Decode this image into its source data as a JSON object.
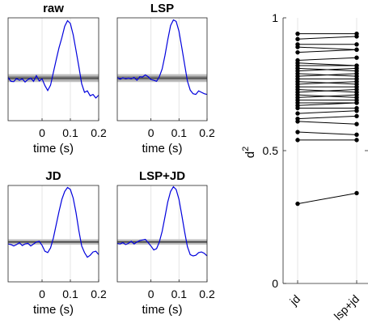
{
  "chart_data": [
    {
      "type": "line",
      "title": "raw",
      "xlabel": "time (s)",
      "xticks": [
        "0",
        "0.1",
        "0.2"
      ],
      "xlim": [
        -0.12,
        0.2
      ],
      "band": {
        "outer": 0.55,
        "inner": 0.28
      },
      "series": [
        {
          "x": [
            -0.12,
            -0.11,
            -0.1,
            -0.09,
            -0.08,
            -0.07,
            -0.06,
            -0.05,
            -0.04,
            -0.03,
            -0.02,
            -0.01,
            0,
            0.01,
            0.02,
            0.03,
            0.04,
            0.05,
            0.06,
            0.07,
            0.08,
            0.09,
            0.1,
            0.11,
            0.12,
            0.13,
            0.14,
            0.15,
            0.16,
            0.17,
            0.18,
            0.19,
            0.2
          ],
          "y": [
            0.1,
            -0.45,
            -0.5,
            -0.05,
            -0.3,
            -0.1,
            -0.55,
            -0.2,
            0.0,
            -0.45,
            0.35,
            -0.4,
            -0.1,
            -1.05,
            -1.75,
            -1.0,
            0.8,
            2.6,
            4.3,
            5.7,
            7.3,
            8.1,
            7.7,
            6.1,
            3.9,
            1.6,
            -0.8,
            -2.0,
            -1.8,
            -2.5,
            -2.3,
            -2.8,
            -2.4
          ]
        }
      ],
      "ylim": [
        -6,
        8.5
      ],
      "color": "#0000dd"
    },
    {
      "type": "line",
      "title": "LSP",
      "xlabel": "time (s)",
      "xticks": [
        "0",
        "0.1",
        "0.2"
      ],
      "xlim": [
        -0.12,
        0.2
      ],
      "band": {
        "outer": 0.55,
        "inner": 0.28
      },
      "series": [
        {
          "x": [
            -0.12,
            -0.11,
            -0.1,
            -0.09,
            -0.08,
            -0.07,
            -0.06,
            -0.05,
            -0.04,
            -0.03,
            -0.02,
            -0.01,
            0,
            0.01,
            0.02,
            0.03,
            0.04,
            0.05,
            0.06,
            0.07,
            0.08,
            0.09,
            0.1,
            0.11,
            0.12,
            0.13,
            0.14,
            0.15,
            0.16,
            0.17,
            0.18,
            0.19,
            0.2
          ],
          "y": [
            0.1,
            -0.15,
            0.05,
            -0.1,
            0.0,
            -0.1,
            0.1,
            -0.3,
            0.2,
            0.15,
            0.45,
            0.2,
            -0.2,
            -0.3,
            -0.45,
            0.2,
            1.3,
            3.2,
            5.4,
            7.4,
            8.2,
            8.0,
            6.6,
            4.3,
            1.9,
            -0.4,
            -1.7,
            -2.2,
            -2.3,
            -1.8,
            -2.0,
            -2.2,
            -2.3
          ]
        }
      ],
      "ylim": [
        -6,
        8.5
      ],
      "color": "#0000dd"
    },
    {
      "type": "line",
      "title": "JD",
      "xlabel": "time (s)",
      "xticks": [
        "0",
        "0.1",
        "0.2"
      ],
      "xlim": [
        -0.12,
        0.2
      ],
      "band": {
        "outer": 0.4,
        "inner": 0.15
      },
      "series": [
        {
          "x": [
            -0.12,
            -0.11,
            -0.1,
            -0.09,
            -0.08,
            -0.07,
            -0.06,
            -0.05,
            -0.04,
            -0.03,
            -0.02,
            -0.01,
            0,
            0.01,
            0.02,
            0.03,
            0.04,
            0.05,
            0.06,
            0.07,
            0.08,
            0.09,
            0.1,
            0.11,
            0.12,
            0.13,
            0.14,
            0.15,
            0.16,
            0.17,
            0.18,
            0.19,
            0.2
          ],
          "y": [
            -0.3,
            -0.4,
            -0.6,
            -0.4,
            -0.1,
            -0.55,
            -0.3,
            -0.2,
            -0.6,
            -0.3,
            0.0,
            0.1,
            -0.5,
            -1.4,
            -1.6,
            -0.9,
            0.6,
            2.6,
            4.6,
            6.4,
            7.6,
            8.2,
            7.9,
            6.6,
            4.4,
            1.7,
            -0.6,
            -1.6,
            -2.3,
            -2.0,
            -1.5,
            -1.4,
            -1.9
          ]
        }
      ],
      "ylim": [
        -6,
        8.5
      ],
      "color": "#0000dd"
    },
    {
      "type": "line",
      "title": "LSP+JD",
      "xlabel": "time (s)",
      "xticks": [
        "0",
        "0.1",
        "0.2"
      ],
      "xlim": [
        -0.12,
        0.2
      ],
      "band": {
        "outer": 0.4,
        "inner": 0.15
      },
      "series": [
        {
          "x": [
            -0.12,
            -0.11,
            -0.1,
            -0.09,
            -0.08,
            -0.07,
            -0.06,
            -0.05,
            -0.04,
            -0.03,
            -0.02,
            -0.01,
            0,
            0.01,
            0.02,
            0.03,
            0.04,
            0.05,
            0.06,
            0.07,
            0.08,
            0.09,
            0.1,
            0.11,
            0.12,
            0.13,
            0.14,
            0.15,
            0.16,
            0.17,
            0.18,
            0.19,
            0.2
          ],
          "y": [
            -0.2,
            -0.3,
            -0.1,
            -0.4,
            -0.2,
            0.1,
            -0.3,
            0.0,
            0.2,
            0.3,
            0.4,
            -0.1,
            -0.6,
            -1.2,
            -1.0,
            0.0,
            1.6,
            3.8,
            6.0,
            7.6,
            8.3,
            7.9,
            6.4,
            4.0,
            1.5,
            -0.7,
            -1.9,
            -2.1,
            -2.0,
            -1.6,
            -1.5,
            -1.7,
            -2.1
          ]
        }
      ],
      "ylim": [
        -6,
        8.5
      ],
      "color": "#0000dd"
    },
    {
      "type": "line",
      "title": "",
      "ylabel": "d²",
      "ylabel_base": "d",
      "ylabel_sup": "2",
      "categories": [
        "jd",
        "lsp+jd"
      ],
      "ylim": [
        0,
        1
      ],
      "yticks": [
        "0",
        "0.5",
        "1"
      ],
      "pairs": [
        [
          0.94,
          0.94
        ],
        [
          0.92,
          0.93
        ],
        [
          0.9,
          0.9
        ],
        [
          0.89,
          0.88
        ],
        [
          0.87,
          0.88
        ],
        [
          0.84,
          0.85
        ],
        [
          0.83,
          0.82
        ],
        [
          0.82,
          0.82
        ],
        [
          0.81,
          0.8
        ],
        [
          0.8,
          0.81
        ],
        [
          0.79,
          0.78
        ],
        [
          0.78,
          0.79
        ],
        [
          0.77,
          0.77
        ],
        [
          0.76,
          0.75
        ],
        [
          0.75,
          0.76
        ],
        [
          0.74,
          0.74
        ],
        [
          0.73,
          0.72
        ],
        [
          0.72,
          0.73
        ],
        [
          0.71,
          0.7
        ],
        [
          0.7,
          0.71
        ],
        [
          0.69,
          0.69
        ],
        [
          0.68,
          0.68
        ],
        [
          0.67,
          0.68
        ],
        [
          0.66,
          0.66
        ],
        [
          0.64,
          0.65
        ],
        [
          0.62,
          0.63
        ],
        [
          0.61,
          0.6
        ],
        [
          0.57,
          0.56
        ],
        [
          0.54,
          0.54
        ],
        [
          0.3,
          0.34
        ]
      ]
    }
  ]
}
